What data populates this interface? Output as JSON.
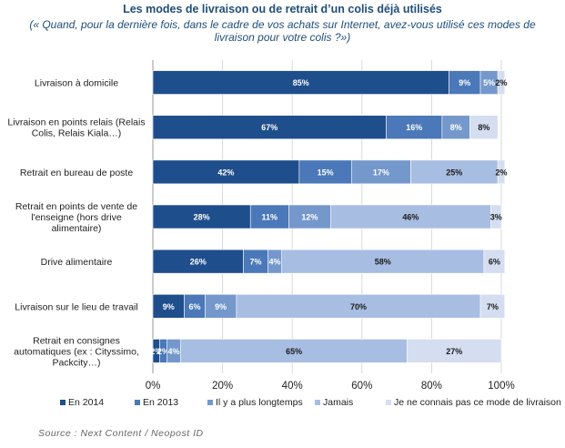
{
  "header": {
    "title": "Les modes de livraison ou de retrait d’un colis déjà utilisés",
    "subtitle": "(« Quand, pour la dernière fois, dans le cadre de vos achats sur Internet, avez-vous utilisé ces modes de livraison pour votre colis ?»)"
  },
  "chart_data": {
    "type": "bar",
    "orientation": "horizontal",
    "stacked": true,
    "categories": [
      [
        "Livraison à domicile"
      ],
      [
        "Livraison en points relais (Relais",
        "Colis, Relais Kiala…)"
      ],
      [
        "Retrait en bureau de poste"
      ],
      [
        "Retrait en points de vente de",
        "l'enseigne (hors drive",
        "alimentaire)"
      ],
      [
        "Drive alimentaire"
      ],
      [
        "Livraison sur le lieu de travail"
      ],
      [
        "Retrait en consignes",
        "automatiques (ex : Cityssimo,",
        "Packcity…)"
      ]
    ],
    "series": [
      {
        "name": "En 2014",
        "color": "#1f4e8c",
        "values": [
          85,
          67,
          42,
          28,
          26,
          9,
          2
        ],
        "labels": [
          "85%",
          "67%",
          "42%",
          "28%",
          "26%",
          "9%",
          "2%"
        ]
      },
      {
        "name": "En 2013",
        "color": "#4a78b8",
        "values": [
          9,
          16,
          15,
          11,
          7,
          6,
          2
        ],
        "labels": [
          "9%",
          "16%",
          "15%",
          "11%",
          "7%",
          "6%",
          "2%"
        ]
      },
      {
        "name": "Il y a plus longtemps",
        "color": "#7498cc",
        "values": [
          5,
          8,
          17,
          12,
          4,
          9,
          4
        ],
        "labels": [
          "5%",
          "8%",
          "17%",
          "12%",
          "4%",
          "9%",
          "4%"
        ]
      },
      {
        "name": "Jamais",
        "color": "#a8bde2",
        "values": [
          0,
          0,
          25,
          46,
          58,
          70,
          65
        ],
        "labels": [
          "",
          "",
          "25%",
          "46%",
          "58%",
          "70%",
          "65%"
        ]
      },
      {
        "name": "Je ne connais pas ce mode de livraison",
        "color": "#d4def0",
        "values": [
          2,
          8,
          2,
          3,
          6,
          7,
          27
        ],
        "labels": [
          "2%",
          "8%",
          "2%",
          "3%",
          "6%",
          "7%",
          "27%"
        ]
      }
    ],
    "xlim": [
      0,
      100
    ],
    "xticks": [
      "0%",
      "20%",
      "40%",
      "60%",
      "80%",
      "100%"
    ],
    "grid": true,
    "legend": "bottom"
  },
  "footer": {
    "source": "Source : Next Content / Neopost ID"
  }
}
